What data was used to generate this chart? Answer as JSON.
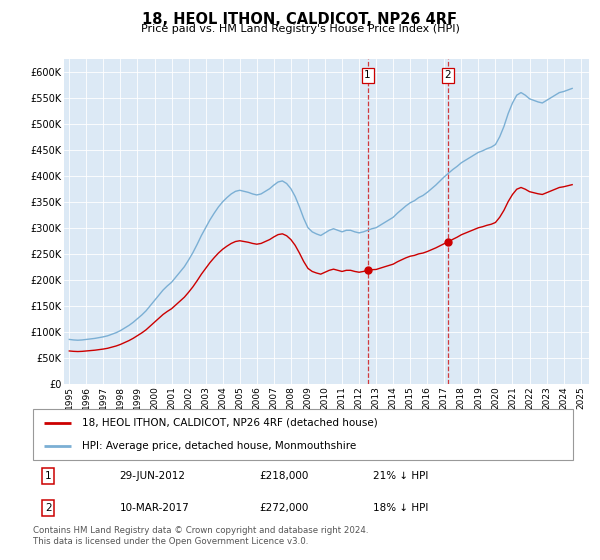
{
  "title": "18, HEOL ITHON, CALDICOT, NP26 4RF",
  "subtitle": "Price paid vs. HM Land Registry's House Price Index (HPI)",
  "hpi_label": "HPI: Average price, detached house, Monmouthshire",
  "property_label": "18, HEOL ITHON, CALDICOT, NP26 4RF (detached house)",
  "hpi_color": "#7bafd4",
  "property_color": "#cc0000",
  "vline_color": "#cc0000",
  "annotation1": {
    "label": "1",
    "date": "29-JUN-2012",
    "price": "£218,000",
    "pct": "21% ↓ HPI",
    "x_year": 2012.5
  },
  "annotation2": {
    "label": "2",
    "date": "10-MAR-2017",
    "price": "£272,000",
    "pct": "18% ↓ HPI",
    "x_year": 2017.2
  },
  "ylim": [
    0,
    625000
  ],
  "xlim_start": 1994.7,
  "xlim_end": 2025.5,
  "yticks": [
    0,
    50000,
    100000,
    150000,
    200000,
    250000,
    300000,
    350000,
    400000,
    450000,
    500000,
    550000,
    600000
  ],
  "ytick_labels": [
    "£0",
    "£50K",
    "£100K",
    "£150K",
    "£200K",
    "£250K",
    "£300K",
    "£350K",
    "£400K",
    "£450K",
    "£500K",
    "£550K",
    "£600K"
  ],
  "xtick_years": [
    1995,
    1996,
    1997,
    1998,
    1999,
    2000,
    2001,
    2002,
    2003,
    2004,
    2005,
    2006,
    2007,
    2008,
    2009,
    2010,
    2011,
    2012,
    2013,
    2014,
    2015,
    2016,
    2017,
    2018,
    2019,
    2020,
    2021,
    2022,
    2023,
    2024,
    2025
  ],
  "bg_color": "#dce9f5",
  "copyright": "Contains HM Land Registry data © Crown copyright and database right 2024.\nThis data is licensed under the Open Government Licence v3.0.",
  "hpi_data_years": [
    1995.0,
    1995.25,
    1995.5,
    1995.75,
    1996.0,
    1996.25,
    1996.5,
    1996.75,
    1997.0,
    1997.25,
    1997.5,
    1997.75,
    1998.0,
    1998.25,
    1998.5,
    1998.75,
    1999.0,
    1999.25,
    1999.5,
    1999.75,
    2000.0,
    2000.25,
    2000.5,
    2000.75,
    2001.0,
    2001.25,
    2001.5,
    2001.75,
    2002.0,
    2002.25,
    2002.5,
    2002.75,
    2003.0,
    2003.25,
    2003.5,
    2003.75,
    2004.0,
    2004.25,
    2004.5,
    2004.75,
    2005.0,
    2005.25,
    2005.5,
    2005.75,
    2006.0,
    2006.25,
    2006.5,
    2006.75,
    2007.0,
    2007.25,
    2007.5,
    2007.75,
    2008.0,
    2008.25,
    2008.5,
    2008.75,
    2009.0,
    2009.25,
    2009.5,
    2009.75,
    2010.0,
    2010.25,
    2010.5,
    2010.75,
    2011.0,
    2011.25,
    2011.5,
    2011.75,
    2012.0,
    2012.25,
    2012.5,
    2012.75,
    2013.0,
    2013.25,
    2013.5,
    2013.75,
    2014.0,
    2014.25,
    2014.5,
    2014.75,
    2015.0,
    2015.25,
    2015.5,
    2015.75,
    2016.0,
    2016.25,
    2016.5,
    2016.75,
    2017.0,
    2017.25,
    2017.5,
    2017.75,
    2018.0,
    2018.25,
    2018.5,
    2018.75,
    2019.0,
    2019.25,
    2019.5,
    2019.75,
    2020.0,
    2020.25,
    2020.5,
    2020.75,
    2021.0,
    2021.25,
    2021.5,
    2021.75,
    2022.0,
    2022.25,
    2022.5,
    2022.75,
    2023.0,
    2023.25,
    2023.5,
    2023.75,
    2024.0,
    2024.25,
    2024.5
  ],
  "hpi_values": [
    85000,
    84000,
    83500,
    84000,
    85000,
    86000,
    87000,
    88500,
    90000,
    92000,
    95000,
    98000,
    102000,
    107000,
    112000,
    118000,
    125000,
    132000,
    140000,
    150000,
    160000,
    170000,
    180000,
    188000,
    195000,
    205000,
    215000,
    225000,
    238000,
    252000,
    268000,
    285000,
    300000,
    315000,
    328000,
    340000,
    350000,
    358000,
    365000,
    370000,
    372000,
    370000,
    368000,
    365000,
    363000,
    365000,
    370000,
    375000,
    382000,
    388000,
    390000,
    385000,
    375000,
    360000,
    340000,
    318000,
    300000,
    292000,
    288000,
    285000,
    290000,
    295000,
    298000,
    295000,
    292000,
    295000,
    295000,
    292000,
    290000,
    292000,
    295000,
    298000,
    300000,
    305000,
    310000,
    315000,
    320000,
    328000,
    335000,
    342000,
    348000,
    352000,
    358000,
    362000,
    368000,
    375000,
    382000,
    390000,
    398000,
    405000,
    412000,
    418000,
    425000,
    430000,
    435000,
    440000,
    445000,
    448000,
    452000,
    455000,
    460000,
    475000,
    495000,
    520000,
    540000,
    555000,
    560000,
    555000,
    548000,
    545000,
    542000,
    540000,
    545000,
    550000,
    555000,
    560000,
    562000,
    565000,
    568000
  ],
  "property_data": [
    {
      "year": 2012.5,
      "price": 218000
    },
    {
      "year": 2017.2,
      "price": 272000
    }
  ]
}
